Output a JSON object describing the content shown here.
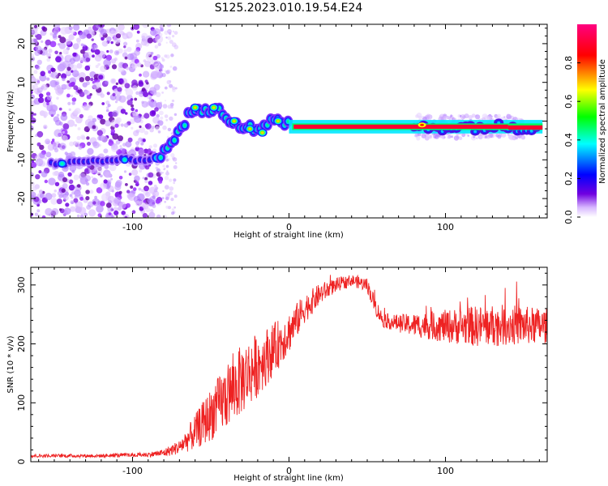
{
  "title": "S125.2023.010.19.54.E24",
  "chart_data": [
    {
      "type": "heatmap",
      "xlabel": "Height of straight line (km)",
      "ylabel": "Frequency (Hz)",
      "xlim": [
        -165,
        165
      ],
      "ylim": [
        -25,
        25
      ],
      "xticks": [
        -100,
        0,
        100
      ],
      "yticks": [
        -20,
        -10,
        0,
        10,
        20
      ],
      "colorbar": {
        "label": "Normalized spectral amplitude",
        "range": [
          0,
          1
        ],
        "ticks": [
          "0.0",
          "0.2",
          "0.4",
          "0.6",
          "0.8"
        ],
        "colors": [
          "#ffffff",
          "#d8b8ff",
          "#7000e0",
          "#0000ff",
          "#00ffff",
          "#00ff00",
          "#ffff00",
          "#ff0000",
          "#ff0080"
        ]
      },
      "trace": {
        "x": [
          -150,
          -130,
          -110,
          -95,
          -85,
          -80,
          -75,
          -70,
          -65,
          -60,
          -55,
          -50,
          -45,
          -40,
          -35,
          -30,
          -25,
          -20,
          -15,
          -10,
          -5,
          0,
          20,
          50,
          80,
          100,
          130,
          160
        ],
        "y": [
          -11,
          -10.5,
          -10,
          -10,
          -9.5,
          -8,
          -5,
          -3,
          1,
          3,
          2,
          3,
          4,
          1,
          0,
          -2,
          -1,
          -3,
          -1,
          0,
          0,
          -1,
          -1,
          -1,
          -1,
          -1.5,
          -1.5,
          -1.8
        ]
      }
    },
    {
      "type": "line",
      "xlabel": "Height of straight line (km)",
      "ylabel": "SNR (10 * v/v)",
      "xlim": [
        -165,
        165
      ],
      "ylim": [
        0,
        330
      ],
      "xticks": [
        -100,
        0,
        100
      ],
      "yticks": [
        0,
        100,
        200,
        300
      ],
      "color": "#ee2222",
      "envelope": {
        "x": [
          -165,
          -120,
          -90,
          -80,
          -70,
          -60,
          -50,
          -40,
          -30,
          -20,
          -10,
          0,
          10,
          20,
          30,
          40,
          50,
          55,
          60,
          70,
          80,
          100,
          120,
          140,
          165
        ],
        "y": [
          10,
          10,
          12,
          15,
          25,
          50,
          80,
          110,
          140,
          165,
          190,
          220,
          260,
          285,
          300,
          308,
          300,
          265,
          240,
          235,
          232,
          230,
          230,
          232,
          230
        ],
        "amplitude": [
          3,
          3,
          4,
          7,
          12,
          30,
          45,
          55,
          60,
          55,
          45,
          35,
          25,
          18,
          12,
          10,
          12,
          15,
          12,
          15,
          20,
          28,
          35,
          35,
          30
        ]
      }
    }
  ]
}
